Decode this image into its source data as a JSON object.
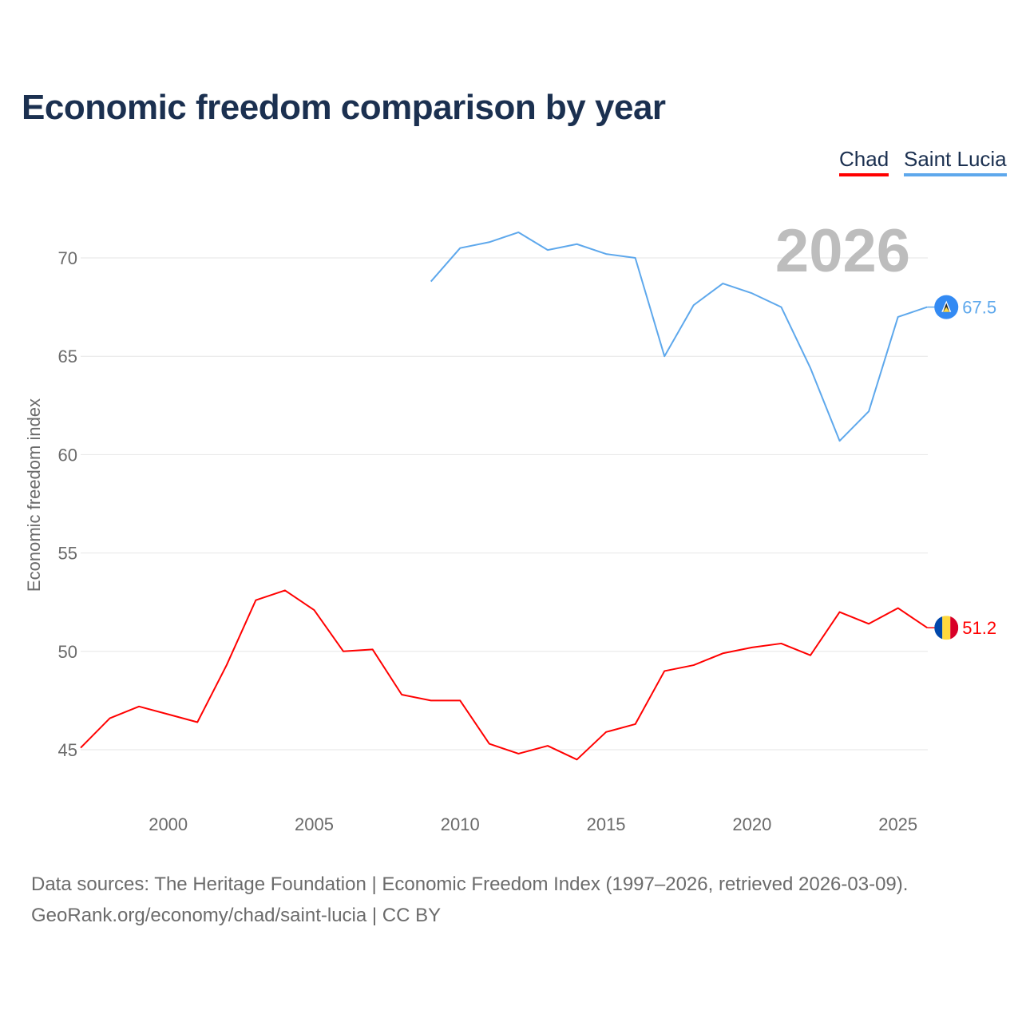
{
  "chart_data": {
    "type": "line",
    "title": "Economic freedom comparison by year",
    "xlabel": "",
    "ylabel": "Economic freedom index",
    "xlim": [
      1997,
      2026
    ],
    "ylim": [
      42.5,
      72.5
    ],
    "x_ticks": [
      2000,
      2005,
      2010,
      2015,
      2020,
      2025
    ],
    "y_ticks": [
      45,
      50,
      55,
      60,
      65,
      70
    ],
    "grid": "horizontal",
    "legend_placement": "top-right",
    "year_watermark": "2026",
    "series": [
      {
        "name": "Chad",
        "color": "#ff0000",
        "end_label": "51.2",
        "x": [
          1997,
          1998,
          1999,
          2000,
          2001,
          2002,
          2003,
          2004,
          2005,
          2006,
          2007,
          2008,
          2009,
          2010,
          2011,
          2012,
          2013,
          2014,
          2015,
          2016,
          2017,
          2018,
          2019,
          2020,
          2021,
          2022,
          2023,
          2024,
          2025,
          2026
        ],
        "values": [
          45.1,
          46.6,
          47.2,
          46.8,
          46.4,
          49.3,
          52.6,
          53.1,
          52.1,
          50.0,
          50.1,
          47.8,
          47.5,
          47.5,
          45.3,
          44.8,
          45.2,
          44.5,
          45.9,
          46.3,
          49.0,
          49.3,
          49.9,
          50.2,
          50.4,
          49.8,
          52.0,
          51.4,
          52.2,
          51.2
        ]
      },
      {
        "name": "Saint Lucia",
        "color": "#5ea8ec",
        "end_label": "67.5",
        "x": [
          2009,
          2010,
          2011,
          2012,
          2013,
          2014,
          2015,
          2016,
          2017,
          2018,
          2019,
          2020,
          2021,
          2022,
          2023,
          2024,
          2025,
          2026
        ],
        "values": [
          68.8,
          70.5,
          70.8,
          71.3,
          70.4,
          70.7,
          70.2,
          70.0,
          65.0,
          67.6,
          68.7,
          68.2,
          67.5,
          64.4,
          60.7,
          62.2,
          67.0,
          67.5
        ]
      }
    ]
  },
  "footer": {
    "line1": "Data sources: The Heritage Foundation | Economic Freedom Index (1997–2026, retrieved 2026-03-09).",
    "line2": "GeoRank.org/economy/chad/saint-lucia | CC BY"
  }
}
